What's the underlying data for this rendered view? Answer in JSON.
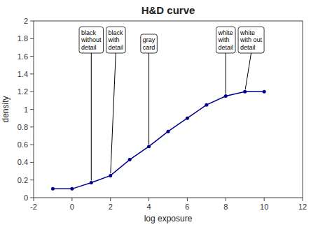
{
  "chart_data": {
    "type": "line",
    "title": "H&D curve",
    "xlabel": "log exposure",
    "ylabel": "density",
    "x": [
      -1,
      0,
      1,
      2,
      3,
      4,
      5,
      6,
      7,
      8,
      9,
      10
    ],
    "values": [
      0.1,
      0.1,
      0.17,
      0.25,
      0.43,
      0.58,
      0.75,
      0.9,
      1.05,
      1.15,
      1.2,
      1.2
    ],
    "color": "#00008B",
    "marker": "point",
    "xlim": [
      -2,
      12
    ],
    "ylim": [
      0,
      2
    ],
    "xticks": [
      -2,
      0,
      2,
      4,
      6,
      8,
      10,
      12
    ],
    "yticks": [
      0,
      0.2,
      0.4,
      0.6,
      0.8,
      1,
      1.2,
      1.4,
      1.6,
      1.8,
      2
    ],
    "annotations": [
      {
        "text": "black\nwithout\ndetail",
        "x": 1,
        "y": 0.17
      },
      {
        "text": "black\nwith\ndetail",
        "x": 2,
        "y": 0.25
      },
      {
        "text": "gray\ncard",
        "x": 4,
        "y": 0.58
      },
      {
        "text": "white\nwith\ndetail",
        "x": 8,
        "y": 1.15
      },
      {
        "text": "white\nwith out\ndetail",
        "x": 9,
        "y": 1.2
      }
    ]
  }
}
